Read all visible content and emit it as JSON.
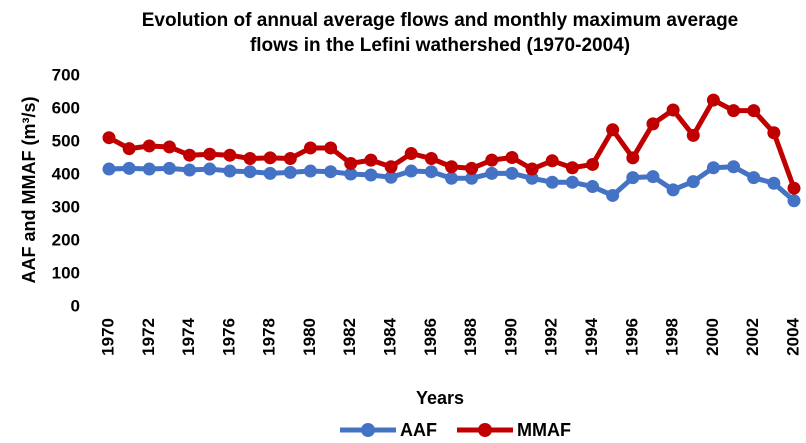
{
  "chart_data": {
    "type": "line",
    "title": [
      "Evolution of annual average flows and monthly maximum average",
      "flows in the Lefini wathershed (1970-2004)"
    ],
    "x_label": "Years",
    "y_label": "AAF and MMAF (m³/s)",
    "x": [
      1970,
      1971,
      1972,
      1973,
      1974,
      1975,
      1976,
      1977,
      1978,
      1979,
      1980,
      1981,
      1982,
      1983,
      1984,
      1985,
      1986,
      1987,
      1988,
      1989,
      1990,
      1991,
      1992,
      1993,
      1994,
      1995,
      1996,
      1997,
      1998,
      1999,
      2000,
      2001,
      2002,
      2003,
      2004
    ],
    "series": [
      {
        "name": "AAF",
        "color": "#4472c4",
        "values": [
          418,
          420,
          418,
          420,
          415,
          418,
          412,
          410,
          405,
          408,
          412,
          410,
          403,
          400,
          393,
          412,
          410,
          390,
          390,
          405,
          405,
          390,
          378,
          378,
          365,
          338,
          392,
          395,
          355,
          380,
          422,
          425,
          392,
          375,
          322
        ]
      },
      {
        "name": "MMAF",
        "color": "#c00000",
        "values": [
          513,
          480,
          488,
          485,
          460,
          463,
          460,
          450,
          452,
          450,
          482,
          482,
          435,
          445,
          425,
          465,
          450,
          425,
          420,
          445,
          453,
          418,
          443,
          422,
          432,
          537,
          452,
          555,
          597,
          520,
          627,
          595,
          595,
          528,
          360
        ]
      }
    ],
    "xlim": [
      1970,
      2004
    ],
    "xticks": [
      1970,
      1972,
      1974,
      1976,
      1978,
      1980,
      1982,
      1984,
      1986,
      1988,
      1990,
      1992,
      1994,
      1996,
      1998,
      2000,
      2002,
      2004
    ],
    "ylim": [
      0,
      700
    ],
    "yticks": [
      0,
      100,
      200,
      300,
      400,
      500,
      600,
      700
    ],
    "grid": false,
    "legend": "bottom"
  }
}
